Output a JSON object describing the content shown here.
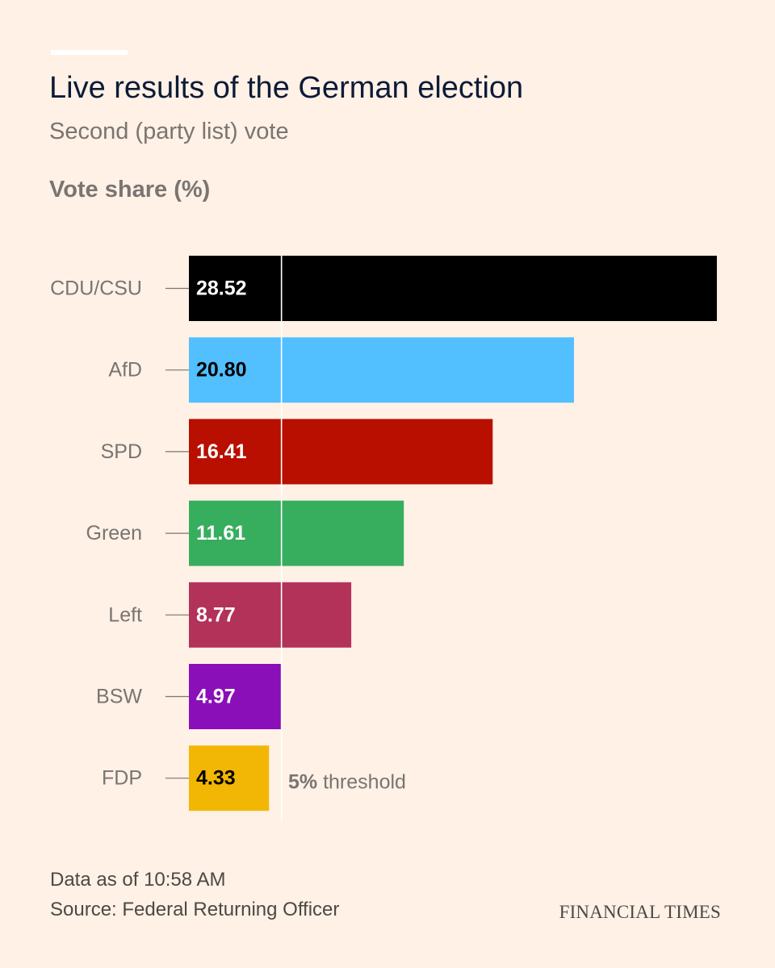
{
  "header": {
    "title": "Live results of the German election",
    "subtitle": "Second (party list) vote",
    "axis_title": "Vote share (%)"
  },
  "chart_data": {
    "type": "bar",
    "orientation": "horizontal",
    "categories": [
      "CDU/CSU",
      "AfD",
      "SPD",
      "Green",
      "Left",
      "BSW",
      "FDP"
    ],
    "values": [
      28.52,
      20.8,
      16.41,
      11.61,
      8.77,
      4.97,
      4.33
    ],
    "value_labels": [
      "28.52",
      "20.80",
      "16.41",
      "11.61",
      "8.77",
      "4.97",
      "4.33"
    ],
    "colors": [
      "#000000",
      "#52bfff",
      "#b80f00",
      "#37ad5e",
      "#b2325a",
      "#8a0fb8",
      "#f2b705"
    ],
    "label_colors": [
      "#ffffff",
      "#000000",
      "#ffffff",
      "#ffffff",
      "#ffffff",
      "#ffffff",
      "#000000"
    ],
    "xlim": [
      0,
      28.52
    ],
    "reference_line": {
      "value": 5,
      "label_bold": "5%",
      "label_rest": " threshold"
    },
    "ylabel": "Vote share (%)"
  },
  "footer": {
    "updated": "Data as of 10:58 AM",
    "source": "Source: Federal Returning Officer",
    "publisher": "FINANCIAL TIMES"
  }
}
